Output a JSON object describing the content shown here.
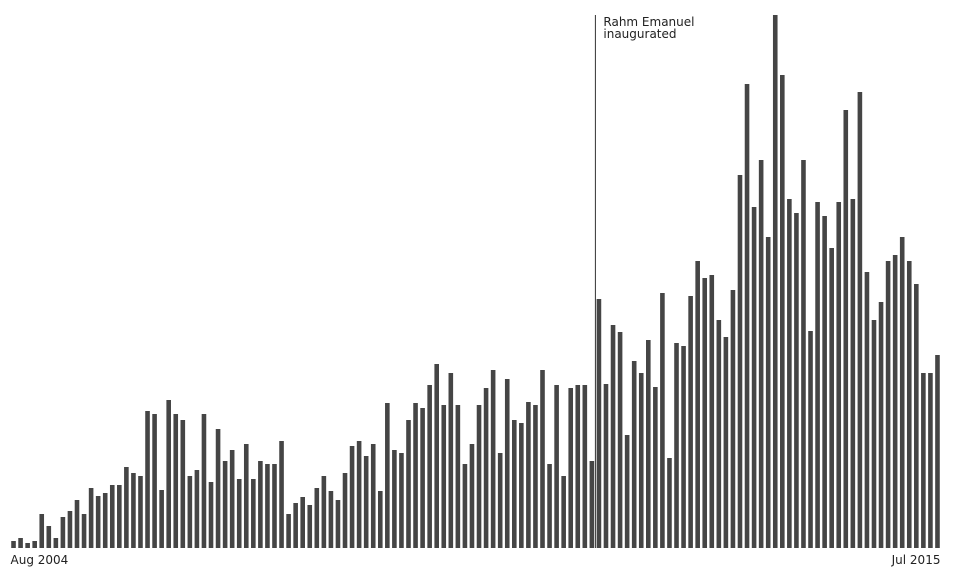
{
  "chart_data": {
    "type": "bar",
    "categories": [
      "Aug 2004",
      null,
      null,
      null,
      null,
      null,
      null,
      null,
      null,
      null,
      null,
      null,
      null,
      null,
      null,
      null,
      null,
      null,
      null,
      null,
      null,
      null,
      null,
      null,
      null,
      null,
      null,
      null,
      null,
      null,
      null,
      null,
      null,
      null,
      null,
      null,
      null,
      null,
      null,
      null,
      null,
      null,
      null,
      null,
      null,
      null,
      null,
      null,
      null,
      null,
      null,
      null,
      null,
      null,
      null,
      null,
      null,
      null,
      null,
      null,
      null,
      null,
      null,
      null,
      null,
      null,
      null,
      null,
      null,
      null,
      null,
      null,
      null,
      null,
      null,
      null,
      null,
      null,
      null,
      null,
      null,
      null,
      null,
      null,
      null,
      null,
      null,
      null,
      null,
      null,
      null,
      null,
      null,
      null,
      null,
      null,
      null,
      null,
      null,
      null,
      null,
      null,
      null,
      null,
      null,
      null,
      null,
      null,
      null,
      null,
      null,
      null,
      null,
      null,
      null,
      null,
      null,
      null,
      null,
      null,
      null,
      null,
      null,
      null,
      null,
      null,
      null,
      null,
      null,
      null,
      null,
      "Jul 2015"
    ],
    "values": [
      7,
      10,
      5,
      7,
      34,
      22,
      10,
      31,
      37,
      48,
      34,
      60,
      52,
      55,
      63,
      63,
      81,
      75,
      72,
      137,
      134,
      58,
      148,
      134,
      128,
      72,
      78,
      134,
      66,
      119,
      87,
      98,
      69,
      104,
      69,
      87,
      84,
      84,
      107,
      34,
      45,
      51,
      43,
      60,
      72,
      57,
      48,
      75,
      102,
      107,
      92,
      104,
      57,
      145,
      98,
      95,
      128,
      145,
      140,
      163,
      184,
      143,
      175,
      143,
      84,
      104,
      143,
      160,
      178,
      95,
      169,
      128,
      125,
      146,
      143,
      178,
      84,
      163,
      72,
      160,
      163,
      163,
      87,
      249,
      164,
      223,
      216,
      113,
      187,
      175,
      208,
      161,
      255,
      90,
      205,
      202,
      252,
      287,
      270,
      273,
      228,
      211,
      258,
      373,
      464,
      341,
      388,
      311,
      533,
      473,
      349,
      335,
      388,
      217,
      346,
      332,
      300,
      346,
      438,
      349,
      456,
      276,
      228,
      246,
      287,
      293,
      311,
      287,
      264,
      175,
      175,
      193
    ],
    "color": "#454545",
    "ylim": [
      0,
      533
    ],
    "annotation": {
      "lines": [
        "Rahm Emanuel",
        "inaugurated"
      ]
    }
  }
}
